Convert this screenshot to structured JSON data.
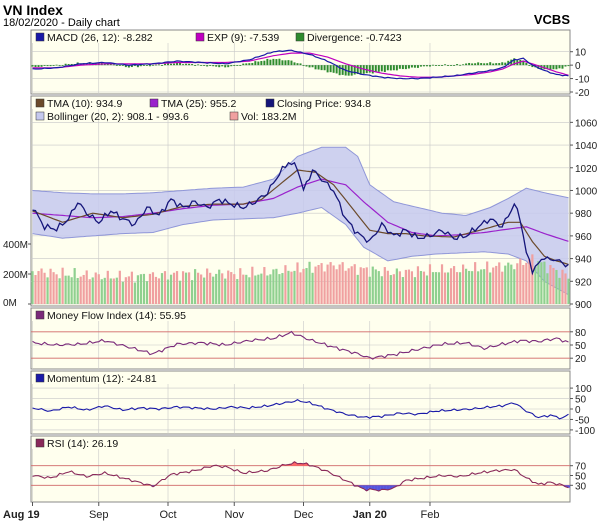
{
  "header": {
    "title": "VN Index",
    "subtitle": "18/02/2020 - Daily chart",
    "source": "VCBS"
  },
  "colors": {
    "panel_bg": "#ffffee",
    "grid": "#c8c8c8",
    "macd_line": "#1a1aa8",
    "exp_line": "#c000c0",
    "divergence_pos": "#2e8b2e",
    "divergence_neg": "#2e8b2e",
    "tma10": "#6b4a2b",
    "tma25": "#9a22cc",
    "close": "#15157a",
    "bollinger_fill": "#c5c9ee",
    "bollinger_line": "#8f96d8",
    "vol_up": "#8fd08f",
    "vol_down": "#f0a0a0",
    "mfi_line": "#7a2a7a",
    "momentum_line": "#1a1aa8",
    "rsi_line": "#8a2a5a",
    "rsi_over": "#ff6666",
    "rsi_under": "#5555dd",
    "ref_line": "#d46a6a"
  },
  "chart_data": [
    {
      "id": "macd",
      "type": "line",
      "legend": [
        {
          "key": "macd",
          "label": "MACD (26, 12): -8.282"
        },
        {
          "key": "exp",
          "label": "EXP (9): -7.539"
        },
        {
          "key": "div",
          "label": "Divergence: -0.7423"
        }
      ],
      "ylim": [
        -20,
        15
      ],
      "y_ticks": [
        10,
        0,
        -10,
        -20
      ],
      "y_tick_labels": [
        "10",
        "0",
        "-10",
        "-20"
      ],
      "knots_macd": [
        [
          0,
          -3
        ],
        [
          8,
          -2
        ],
        [
          16,
          1
        ],
        [
          24,
          2
        ],
        [
          32,
          0
        ],
        [
          40,
          1
        ],
        [
          48,
          3
        ],
        [
          56,
          2
        ],
        [
          64,
          1
        ],
        [
          72,
          4
        ],
        [
          80,
          10
        ],
        [
          86,
          11
        ],
        [
          92,
          8
        ],
        [
          98,
          3
        ],
        [
          104,
          -4
        ],
        [
          110,
          -7
        ],
        [
          116,
          -9
        ],
        [
          122,
          -10
        ],
        [
          128,
          -10
        ],
        [
          134,
          -9
        ],
        [
          140,
          -8
        ],
        [
          146,
          -6
        ],
        [
          152,
          -4
        ],
        [
          156,
          -2
        ],
        [
          160,
          4
        ],
        [
          163,
          5
        ],
        [
          166,
          0
        ],
        [
          170,
          -4
        ],
        [
          174,
          -7
        ],
        [
          178,
          -8
        ]
      ],
      "knots_exp": [
        [
          0,
          -2
        ],
        [
          8,
          -2
        ],
        [
          16,
          0
        ],
        [
          24,
          1
        ],
        [
          32,
          1
        ],
        [
          40,
          1
        ],
        [
          48,
          2
        ],
        [
          56,
          2
        ],
        [
          64,
          2
        ],
        [
          72,
          3
        ],
        [
          80,
          7
        ],
        [
          86,
          9
        ],
        [
          92,
          9
        ],
        [
          98,
          6
        ],
        [
          104,
          1
        ],
        [
          110,
          -3
        ],
        [
          116,
          -6
        ],
        [
          122,
          -8
        ],
        [
          128,
          -9
        ],
        [
          134,
          -9
        ],
        [
          140,
          -8
        ],
        [
          146,
          -7
        ],
        [
          152,
          -5
        ],
        [
          156,
          -3
        ],
        [
          160,
          1
        ],
        [
          163,
          3
        ],
        [
          166,
          1
        ],
        [
          170,
          -2
        ],
        [
          174,
          -5
        ],
        [
          178,
          -7.5
        ]
      ]
    },
    {
      "id": "price",
      "type": "line",
      "legend": [
        {
          "key": "tma10",
          "label": "TMA (10): 934.9"
        },
        {
          "key": "tma25",
          "label": "TMA (25): 955.2"
        },
        {
          "key": "close",
          "label": "Closing Price: 934.8"
        },
        {
          "key": "boll",
          "label": "Bollinger (20, 2): 908.1 - 993.6"
        },
        {
          "key": "vol",
          "label": "Vol: 183.2M"
        }
      ],
      "ylim": [
        900,
        1070
      ],
      "y_ticks": [
        900,
        920,
        940,
        960,
        980,
        1000,
        1020,
        1040,
        1060
      ],
      "y_tick_labels": [
        "900",
        "920",
        "940",
        "960",
        "980",
        "1000",
        "1020",
        "1040",
        "1060"
      ],
      "vol_axis_labels": [
        "400M",
        "200M",
        "0M"
      ],
      "vol_axis_values": [
        400,
        200,
        0
      ],
      "vol_max": 800,
      "knots_close": [
        [
          0,
          985
        ],
        [
          4,
          968
        ],
        [
          8,
          966
        ],
        [
          12,
          975
        ],
        [
          15,
          990
        ],
        [
          18,
          980
        ],
        [
          22,
          972
        ],
        [
          26,
          982
        ],
        [
          30,
          975
        ],
        [
          34,
          970
        ],
        [
          38,
          985
        ],
        [
          42,
          978
        ],
        [
          46,
          992
        ],
        [
          50,
          985
        ],
        [
          54,
          990
        ],
        [
          58,
          985
        ],
        [
          62,
          992
        ],
        [
          66,
          988
        ],
        [
          70,
          985
        ],
        [
          74,
          990
        ],
        [
          78,
          998
        ],
        [
          82,
          1015
        ],
        [
          85,
          1025
        ],
        [
          88,
          1020
        ],
        [
          90,
          1000
        ],
        [
          93,
          1018
        ],
        [
          96,
          1010
        ],
        [
          100,
          1000
        ],
        [
          104,
          975
        ],
        [
          108,
          962
        ],
        [
          112,
          955
        ],
        [
          116,
          970
        ],
        [
          120,
          960
        ],
        [
          124,
          965
        ],
        [
          128,
          958
        ],
        [
          132,
          960
        ],
        [
          136,
          965
        ],
        [
          140,
          958
        ],
        [
          144,
          960
        ],
        [
          148,
          968
        ],
        [
          152,
          975
        ],
        [
          156,
          968
        ],
        [
          160,
          988
        ],
        [
          162,
          975
        ],
        [
          164,
          945
        ],
        [
          166,
          930
        ],
        [
          168,
          935
        ],
        [
          170,
          942
        ],
        [
          172,
          938
        ],
        [
          174,
          940
        ],
        [
          176,
          935
        ],
        [
          178,
          934.8
        ]
      ],
      "knots_tma10": [
        [
          0,
          982
        ],
        [
          10,
          972
        ],
        [
          20,
          980
        ],
        [
          30,
          976
        ],
        [
          40,
          979
        ],
        [
          50,
          986
        ],
        [
          60,
          988
        ],
        [
          70,
          988
        ],
        [
          76,
          992
        ],
        [
          82,
          1005
        ],
        [
          88,
          1018
        ],
        [
          94,
          1016
        ],
        [
          100,
          1005
        ],
        [
          106,
          985
        ],
        [
          112,
          965
        ],
        [
          118,
          962
        ],
        [
          124,
          962
        ],
        [
          130,
          960
        ],
        [
          140,
          959
        ],
        [
          150,
          966
        ],
        [
          158,
          972
        ],
        [
          162,
          972
        ],
        [
          166,
          955
        ],
        [
          170,
          942
        ],
        [
          174,
          938
        ],
        [
          178,
          934.9
        ]
      ],
      "knots_tma25": [
        [
          0,
          980
        ],
        [
          10,
          978
        ],
        [
          20,
          976
        ],
        [
          30,
          977
        ],
        [
          40,
          980
        ],
        [
          50,
          984
        ],
        [
          60,
          987
        ],
        [
          70,
          988
        ],
        [
          80,
          993
        ],
        [
          88,
          1003
        ],
        [
          96,
          1010
        ],
        [
          104,
          1005
        ],
        [
          110,
          990
        ],
        [
          118,
          972
        ],
        [
          126,
          963
        ],
        [
          134,
          960
        ],
        [
          142,
          961
        ],
        [
          150,
          963
        ],
        [
          158,
          966
        ],
        [
          164,
          968
        ],
        [
          170,
          962
        ],
        [
          178,
          955.2
        ]
      ],
      "knots_boll_upper": [
        [
          0,
          1000
        ],
        [
          10,
          998
        ],
        [
          20,
          997
        ],
        [
          30,
          997
        ],
        [
          40,
          998
        ],
        [
          50,
          1000
        ],
        [
          60,
          1002
        ],
        [
          70,
          1003
        ],
        [
          80,
          1010
        ],
        [
          88,
          1030
        ],
        [
          96,
          1038
        ],
        [
          104,
          1038
        ],
        [
          108,
          1030
        ],
        [
          112,
          1005
        ],
        [
          120,
          990
        ],
        [
          128,
          985
        ],
        [
          136,
          980
        ],
        [
          144,
          978
        ],
        [
          152,
          985
        ],
        [
          158,
          993
        ],
        [
          164,
          1002
        ],
        [
          170,
          998
        ],
        [
          178,
          993.6
        ]
      ],
      "knots_boll_lower": [
        [
          0,
          962
        ],
        [
          10,
          958
        ],
        [
          20,
          960
        ],
        [
          30,
          962
        ],
        [
          40,
          963
        ],
        [
          50,
          970
        ],
        [
          60,
          974
        ],
        [
          70,
          975
        ],
        [
          80,
          976
        ],
        [
          88,
          980
        ],
        [
          96,
          985
        ],
        [
          104,
          970
        ],
        [
          110,
          950
        ],
        [
          118,
          938
        ],
        [
          126,
          942
        ],
        [
          134,
          944
        ],
        [
          142,
          945
        ],
        [
          150,
          946
        ],
        [
          158,
          944
        ],
        [
          164,
          938
        ],
        [
          170,
          920
        ],
        [
          178,
          908.1
        ]
      ],
      "knots_volume": [
        [
          0,
          220
        ],
        [
          10,
          200
        ],
        [
          20,
          190
        ],
        [
          30,
          180
        ],
        [
          40,
          190
        ],
        [
          50,
          200
        ],
        [
          60,
          205
        ],
        [
          70,
          200
        ],
        [
          80,
          215
        ],
        [
          90,
          240
        ],
        [
          100,
          260
        ],
        [
          110,
          230
        ],
        [
          120,
          210
        ],
        [
          130,
          220
        ],
        [
          140,
          230
        ],
        [
          150,
          240
        ],
        [
          160,
          260
        ],
        [
          166,
          300
        ],
        [
          172,
          240
        ],
        [
          178,
          183
        ]
      ]
    },
    {
      "id": "mfi",
      "type": "line",
      "legend": [
        {
          "key": "mfi",
          "label": "Money Flow Index (14): 55.95"
        }
      ],
      "ylim": [
        0,
        100
      ],
      "y_ticks": [
        80,
        50,
        20
      ],
      "y_tick_labels": [
        "80",
        "50",
        "20"
      ],
      "ref_levels": [
        80,
        20
      ],
      "knots": [
        [
          0,
          55
        ],
        [
          8,
          50
        ],
        [
          16,
          52
        ],
        [
          24,
          60
        ],
        [
          32,
          45
        ],
        [
          40,
          30
        ],
        [
          48,
          52
        ],
        [
          56,
          55
        ],
        [
          64,
          50
        ],
        [
          72,
          60
        ],
        [
          80,
          65
        ],
        [
          86,
          78
        ],
        [
          92,
          62
        ],
        [
          100,
          45
        ],
        [
          108,
          30
        ],
        [
          112,
          20
        ],
        [
          120,
          28
        ],
        [
          128,
          40
        ],
        [
          136,
          52
        ],
        [
          144,
          55
        ],
        [
          150,
          42
        ],
        [
          156,
          52
        ],
        [
          162,
          60
        ],
        [
          168,
          58
        ],
        [
          174,
          65
        ],
        [
          178,
          56
        ]
      ]
    },
    {
      "id": "momentum",
      "type": "line",
      "legend": [
        {
          "key": "mom",
          "label": "Momentum (12): -24.81"
        }
      ],
      "ylim": [
        -110,
        110
      ],
      "y_ticks": [
        100,
        50,
        0,
        -50,
        -100
      ],
      "y_tick_labels": [
        "100",
        "50",
        "0",
        "-50",
        "-100"
      ],
      "knots": [
        [
          0,
          5
        ],
        [
          6,
          -10
        ],
        [
          12,
          10
        ],
        [
          18,
          -5
        ],
        [
          24,
          15
        ],
        [
          30,
          -5
        ],
        [
          36,
          5
        ],
        [
          42,
          0
        ],
        [
          48,
          10
        ],
        [
          54,
          5
        ],
        [
          60,
          0
        ],
        [
          66,
          10
        ],
        [
          72,
          5
        ],
        [
          78,
          15
        ],
        [
          84,
          30
        ],
        [
          88,
          40
        ],
        [
          92,
          30
        ],
        [
          98,
          0
        ],
        [
          104,
          -25
        ],
        [
          110,
          -40
        ],
        [
          116,
          -35
        ],
        [
          122,
          -20
        ],
        [
          128,
          -25
        ],
        [
          134,
          -10
        ],
        [
          140,
          -5
        ],
        [
          146,
          0
        ],
        [
          152,
          10
        ],
        [
          156,
          15
        ],
        [
          160,
          30
        ],
        [
          164,
          -10
        ],
        [
          168,
          -40
        ],
        [
          172,
          -30
        ],
        [
          176,
          -45
        ],
        [
          178,
          -24.8
        ]
      ]
    },
    {
      "id": "rsi",
      "type": "line",
      "legend": [
        {
          "key": "rsi",
          "label": "RSI (14): 26.19"
        }
      ],
      "ylim": [
        0,
        100
      ],
      "y_ticks": [
        70,
        50,
        30
      ],
      "y_tick_labels": [
        "70",
        "50",
        "30"
      ],
      "ref_levels": [
        70,
        30
      ],
      "knots": [
        [
          0,
          50
        ],
        [
          6,
          45
        ],
        [
          12,
          58
        ],
        [
          18,
          48
        ],
        [
          24,
          55
        ],
        [
          30,
          45
        ],
        [
          36,
          35
        ],
        [
          40,
          28
        ],
        [
          46,
          52
        ],
        [
          54,
          60
        ],
        [
          60,
          70
        ],
        [
          64,
          68
        ],
        [
          70,
          55
        ],
        [
          78,
          60
        ],
        [
          84,
          72
        ],
        [
          88,
          76
        ],
        [
          92,
          72
        ],
        [
          98,
          58
        ],
        [
          104,
          40
        ],
        [
          110,
          22
        ],
        [
          116,
          20
        ],
        [
          120,
          24
        ],
        [
          124,
          40
        ],
        [
          130,
          45
        ],
        [
          136,
          50
        ],
        [
          142,
          48
        ],
        [
          148,
          55
        ],
        [
          154,
          60
        ],
        [
          160,
          62
        ],
        [
          164,
          45
        ],
        [
          168,
          32
        ],
        [
          172,
          36
        ],
        [
          176,
          30
        ],
        [
          178,
          26.2
        ]
      ]
    }
  ],
  "x_axis": {
    "labels": [
      "Aug 19",
      "Sep",
      "Oct",
      "Nov",
      "Dec",
      "Jan 20",
      "Feb"
    ],
    "positions": [
      0,
      22,
      45,
      67,
      90,
      112,
      132
    ],
    "count": 179
  }
}
